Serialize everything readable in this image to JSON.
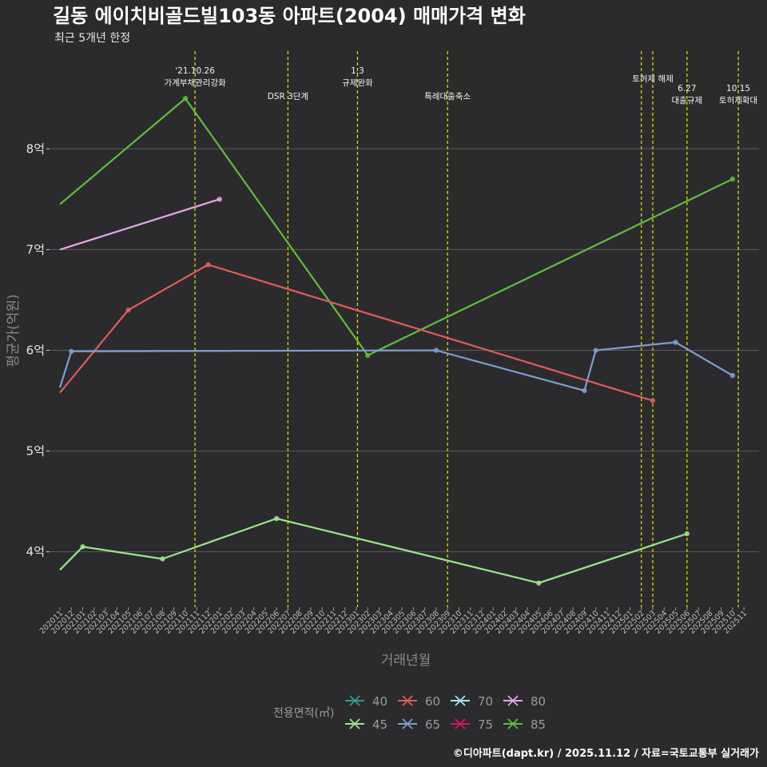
{
  "colors": {
    "background": "#2b2b2d",
    "grid": "#5a5a5a",
    "event_line": "#e5e500"
  },
  "chart_data": {
    "type": "line",
    "title": "길동 에이치비골드빌103동 아파트(2004) 매매가격 변화",
    "subtitle": "최근 5개년 한정",
    "xlabel": "거래년월",
    "ylabel": "평균가(억원)",
    "ylim": [
      3.45,
      8.97
    ],
    "yticks": [
      {
        "value": 4,
        "label": "4억"
      },
      {
        "value": 5,
        "label": "5억"
      },
      {
        "value": 6,
        "label": "6억"
      },
      {
        "value": 7,
        "label": "7억"
      },
      {
        "value": 8,
        "label": "8억"
      }
    ],
    "x_start": "2020-11",
    "x_end": "2025-11",
    "categories": [
      "202011",
      "202012",
      "202101",
      "202102",
      "202103",
      "202104",
      "202105",
      "202106",
      "202107",
      "202108",
      "202109",
      "202110",
      "202111",
      "202112",
      "202201",
      "202202",
      "202203",
      "202204",
      "202205",
      "202206",
      "202207",
      "202208",
      "202209",
      "202210",
      "202211",
      "202212",
      "202301",
      "202302",
      "202303",
      "202304",
      "202305",
      "202306",
      "202307",
      "202308",
      "202309",
      "202310",
      "202311",
      "202312",
      "202401",
      "202402",
      "202403",
      "202404",
      "202405",
      "202406",
      "202407",
      "202408",
      "202409",
      "202410",
      "202411",
      "202412",
      "202501",
      "202502",
      "202503",
      "202504",
      "202505",
      "202506",
      "202507",
      "202508",
      "202509",
      "202510",
      "202511"
    ],
    "events": [
      {
        "x": "2021-10.85",
        "lines": [
          "'21.10.26",
          "가계부채관리강화"
        ],
        "row": 1
      },
      {
        "x": "2022-07",
        "lines": [
          "DSR 3단계"
        ],
        "row": 2
      },
      {
        "x": "2023-01.1",
        "lines": [
          "1.3",
          "규제완화"
        ],
        "row": 1
      },
      {
        "x": "2023-09",
        "lines": [
          "특례대출축소"
        ],
        "row": 2
      },
      {
        "x": "2025-02",
        "lines": [],
        "row": 1
      },
      {
        "x": "2025-03",
        "lines": [
          "토허제 해제"
        ],
        "row": 1
      },
      {
        "x": "2025-06",
        "lines": [
          "6.27",
          "대출규제"
        ],
        "row": 3
      },
      {
        "x": "2025-10.5",
        "lines": [
          "10.15",
          "토허제확대"
        ],
        "row": 3
      }
    ],
    "legend_title": "전용면적(㎡)",
    "legend": [
      {
        "name": "40",
        "color": "#2a9d8f"
      },
      {
        "name": "60",
        "color": "#e05c5c"
      },
      {
        "name": "70",
        "color": "#a8e6ef"
      },
      {
        "name": "80",
        "color": "#e8a6e8"
      },
      {
        "name": "45",
        "color": "#9be68a"
      },
      {
        "name": "65",
        "color": "#7f9ed0"
      },
      {
        "name": "75",
        "color": "#e0106a"
      },
      {
        "name": "85",
        "color": "#5cbf3c"
      }
    ],
    "series": [
      {
        "name": "85",
        "color": "#5cbf3c",
        "start_dot": false,
        "points": [
          [
            "2020-11",
            7.45
          ],
          [
            "2021-10",
            8.5
          ],
          [
            "2023-02",
            5.95
          ],
          [
            "2025-10",
            7.7
          ]
        ]
      },
      {
        "name": "80",
        "color": "#e8a6e8",
        "start_dot": false,
        "points": [
          [
            "2020-11",
            7.0
          ],
          [
            "2022-01",
            7.5
          ]
        ]
      },
      {
        "name": "60",
        "color": "#e05c5c",
        "start_dot": false,
        "points": [
          [
            "2020-11",
            5.58
          ],
          [
            "2021-05",
            6.4
          ],
          [
            "2021-12",
            6.85
          ],
          [
            "2025-03",
            5.5
          ]
        ]
      },
      {
        "name": "65",
        "color": "#7f9ed0",
        "start_dot": false,
        "points": [
          [
            "2020-11",
            5.63
          ],
          [
            "2020-12",
            5.99
          ],
          [
            "2023-08",
            6.0
          ],
          [
            "2024-09",
            5.6
          ],
          [
            "2024-10",
            6.0
          ],
          [
            "2025-05",
            6.08
          ],
          [
            "2025-10",
            5.75
          ]
        ]
      },
      {
        "name": "45",
        "color": "#9be68a",
        "start_dot": false,
        "points": [
          [
            "2020-11",
            3.82
          ],
          [
            "2021-01",
            4.05
          ],
          [
            "2021-08",
            3.93
          ],
          [
            "2022-06",
            4.33
          ],
          [
            "2024-05",
            3.69
          ],
          [
            "2025-06",
            4.18
          ]
        ]
      }
    ]
  },
  "caption": "©디아파트(dapt.kr) / 2025.11.12 / 자료=국토교통부 실거래가"
}
